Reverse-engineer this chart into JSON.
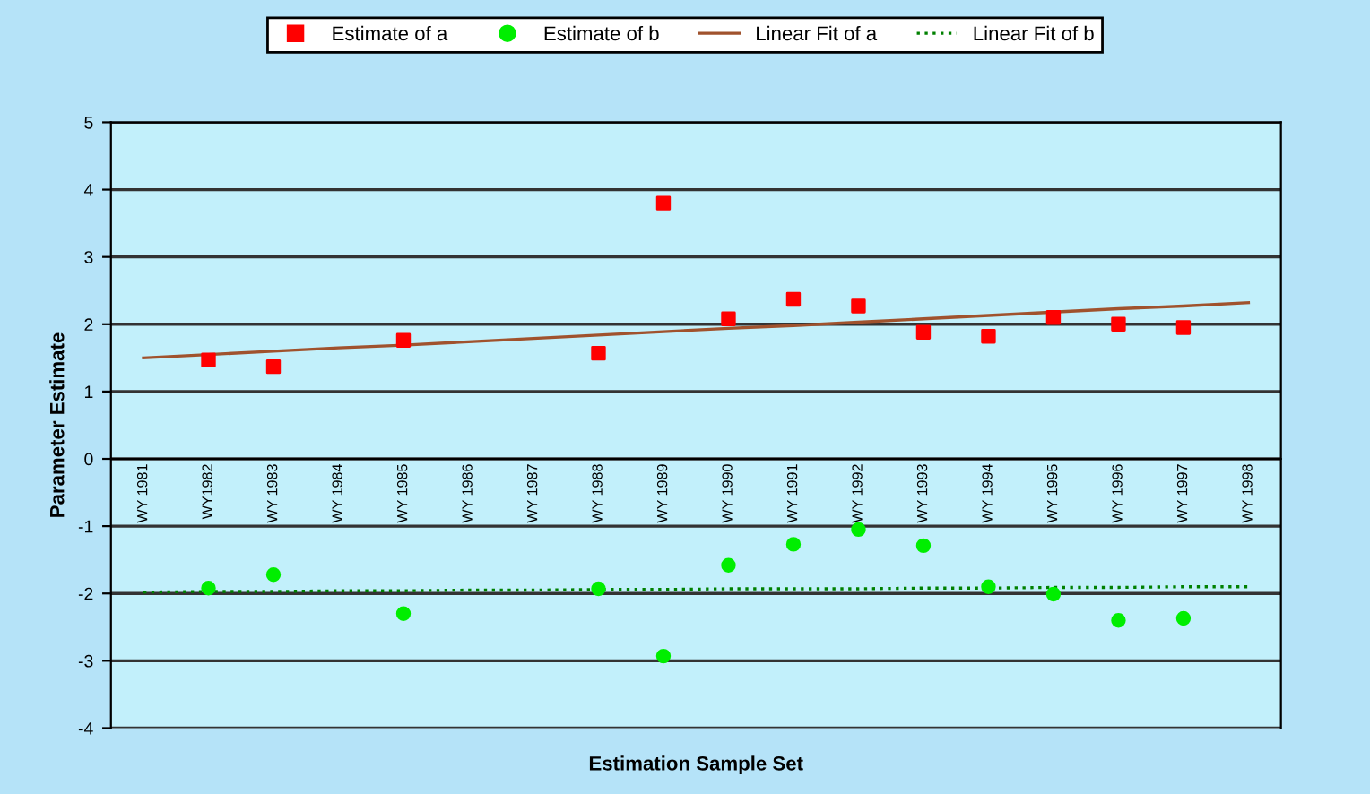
{
  "chart_data": {
    "type": "scatter",
    "xlabel": "Estimation Sample Set",
    "ylabel": "Parameter Estimate",
    "categories": [
      "WY 1981",
      "WY1982",
      "WY 1983",
      "WY 1984",
      "WY 1985",
      "WY 1986",
      "WY 1987",
      "WY 1988",
      "WY 1989",
      "WY 1990",
      "WY 1991",
      "WY 1992",
      "WY 1993",
      "WY 1994",
      "WY 1995",
      "WY 1996",
      "WY 1997",
      "WY 1998"
    ],
    "series": [
      {
        "name": "Estimate of a",
        "marker": "square",
        "color": "#ff0000",
        "values": [
          null,
          1.47,
          1.37,
          null,
          1.76,
          null,
          null,
          1.57,
          3.8,
          2.08,
          2.37,
          2.27,
          1.88,
          1.82,
          2.1,
          2.0,
          1.95,
          null
        ]
      },
      {
        "name": "Estimate of b",
        "marker": "circle",
        "color": "#00ee00",
        "values": [
          null,
          -1.92,
          -1.72,
          null,
          -2.3,
          null,
          null,
          -1.93,
          -2.93,
          -1.58,
          -1.27,
          -1.05,
          -1.29,
          -1.9,
          -2.01,
          -2.4,
          -2.37,
          null
        ]
      },
      {
        "name": "Linear Fit of a",
        "type": "line",
        "line_style": "solid",
        "color": "#a0522d",
        "values": [
          1.5,
          1.55,
          1.6,
          1.65,
          1.69,
          1.74,
          1.79,
          1.84,
          1.89,
          1.94,
          1.98,
          2.03,
          2.08,
          2.13,
          2.18,
          2.23,
          2.27,
          2.32
        ]
      },
      {
        "name": "Linear Fit of b",
        "type": "line",
        "line_style": "dotted",
        "color": "#008000",
        "values": [
          -1.98,
          -1.97,
          -1.97,
          -1.96,
          -1.96,
          -1.95,
          -1.95,
          -1.94,
          -1.94,
          -1.93,
          -1.93,
          -1.93,
          -1.92,
          -1.92,
          -1.91,
          -1.91,
          -1.9,
          -1.9
        ]
      }
    ],
    "ylim": [
      -4,
      5
    ],
    "yticks": [
      -4,
      -3,
      -2,
      -1,
      0,
      1,
      2,
      3,
      4,
      5
    ],
    "grid": "y",
    "legend": "top"
  }
}
